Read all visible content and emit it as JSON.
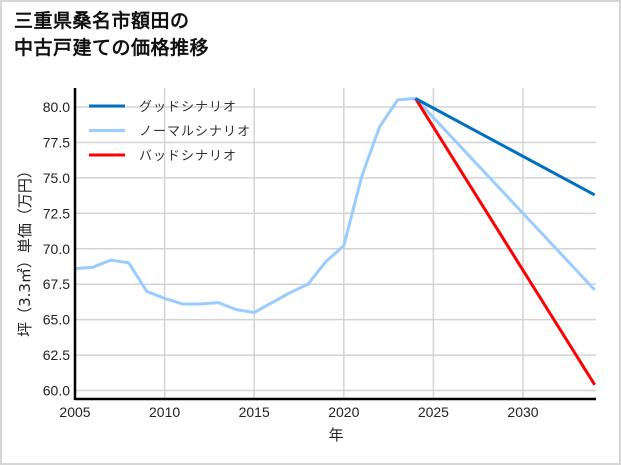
{
  "title": {
    "line1": "三重県桑名市額田の",
    "line2": "中古戸建ての価格推移"
  },
  "chart_data": {
    "type": "line",
    "title": "三重県桑名市額田の中古戸建ての価格推移",
    "xlabel": "年",
    "ylabel": "坪（3.3㎡）単価（万円）",
    "xlim": [
      2005,
      2034
    ],
    "ylim": [
      59.5,
      81.5
    ],
    "xticks": [
      2005,
      2010,
      2015,
      2020,
      2025,
      2030
    ],
    "yticks": [
      60.0,
      62.5,
      65.0,
      67.5,
      70.0,
      72.5,
      75.0,
      77.5,
      80.0
    ],
    "ytick_labels": [
      "60.0",
      "62.5",
      "65.0",
      "67.5",
      "70.0",
      "72.5",
      "75.0",
      "77.5",
      "80.0"
    ],
    "grid": true,
    "legend_position": "upper left",
    "series": [
      {
        "name": "グッドシナリオ",
        "color": "#0070c0",
        "x": [
          2024,
          2034
        ],
        "values": [
          80.6,
          73.8
        ]
      },
      {
        "name": "ノーマルシナリオ",
        "color": "#99ccff",
        "x": [
          2005,
          2006,
          2007,
          2008,
          2009,
          2010,
          2011,
          2012,
          2013,
          2014,
          2015,
          2016,
          2017,
          2018,
          2019,
          2020,
          2021,
          2022,
          2023,
          2024,
          2034
        ],
        "values": [
          68.6,
          68.7,
          69.2,
          69.0,
          67.0,
          66.5,
          66.1,
          66.1,
          66.2,
          65.7,
          65.5,
          66.2,
          66.9,
          67.5,
          69.1,
          70.2,
          75.1,
          78.6,
          80.5,
          80.6,
          67.1
        ]
      },
      {
        "name": "バッドシナリオ",
        "color": "#ff0000",
        "x": [
          2024,
          2034
        ],
        "values": [
          80.6,
          60.4
        ]
      }
    ]
  }
}
